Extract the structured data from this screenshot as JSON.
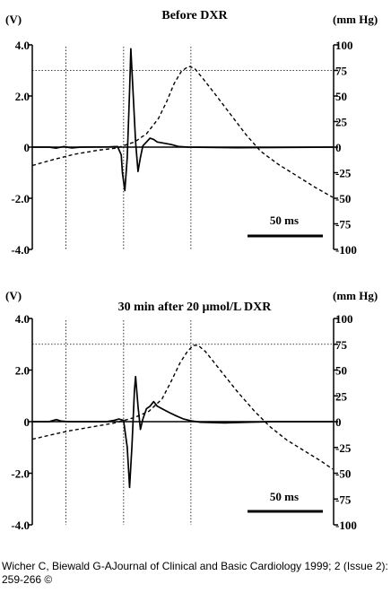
{
  "chart_data": [
    {
      "type": "line",
      "title": "Before DXR",
      "left_axis": {
        "unit": "(V)",
        "ticks": [
          "4.0",
          "2.0",
          "0",
          "-2.0",
          "-4.0"
        ],
        "range": [
          -4,
          4
        ]
      },
      "right_axis": {
        "unit": "(mm Hg)",
        "ticks": [
          "100",
          "75",
          "50",
          "25",
          "0",
          "-25",
          "-50",
          "-75",
          "-100"
        ],
        "range": [
          -100,
          100
        ]
      },
      "time_scale_label": "50 ms",
      "grid": false,
      "series": [
        {
          "style": "solid",
          "axis": "left",
          "points": [
            [
              0,
              0
            ],
            [
              14,
              0
            ],
            [
              20,
              -0.04
            ],
            [
              26,
              0.02
            ],
            [
              33,
              -0.03
            ],
            [
              40,
              0
            ],
            [
              64,
              0.01
            ],
            [
              71,
              0.02
            ],
            [
              74,
              -0.3
            ],
            [
              75,
              -1.0
            ],
            [
              77,
              -1.7
            ],
            [
              79,
              -0.4
            ],
            [
              81,
              2.2
            ],
            [
              82,
              3.85
            ],
            [
              84,
              2.0
            ],
            [
              86,
              0.2
            ],
            [
              88,
              -0.95
            ],
            [
              90,
              -0.4
            ],
            [
              92,
              0.05
            ],
            [
              95,
              0.2
            ],
            [
              98,
              0.35
            ],
            [
              101,
              0.3
            ],
            [
              104,
              0.2
            ],
            [
              110,
              0.15
            ],
            [
              116,
              0.1
            ],
            [
              122,
              0.02
            ],
            [
              130,
              0
            ],
            [
              170,
              -0.02
            ],
            [
              250,
              0
            ]
          ]
        },
        {
          "style": "dashed",
          "axis": "right",
          "points": [
            [
              0,
              -18
            ],
            [
              18,
              -12
            ],
            [
              35,
              -7
            ],
            [
              55,
              -3
            ],
            [
              70,
              -1
            ],
            [
              85,
              5
            ],
            [
              95,
              13
            ],
            [
              105,
              28
            ],
            [
              112,
              45
            ],
            [
              118,
              62
            ],
            [
              124,
              74
            ],
            [
              130,
              79
            ],
            [
              135,
              77
            ],
            [
              142,
              67
            ],
            [
              152,
              52
            ],
            [
              165,
              32
            ],
            [
              178,
              12
            ],
            [
              190,
              -4
            ],
            [
              205,
              -17
            ],
            [
              220,
              -28
            ],
            [
              235,
              -39
            ],
            [
              250,
              -49
            ]
          ]
        }
      ],
      "reference_lines": {
        "horizontal_right_axis": [
          75
        ],
        "vertical_x": [
          28,
          76,
          132
        ]
      }
    },
    {
      "type": "line",
      "title": "30 min after 20 µmol/L DXR",
      "left_axis": {
        "unit": "(V)",
        "ticks": [
          "4.0",
          "2.0",
          "0",
          "-2.0",
          "-4.0"
        ],
        "range": [
          -4,
          4
        ]
      },
      "right_axis": {
        "unit": "(mm Hg)",
        "ticks": [
          "100",
          "75",
          "50",
          "25",
          "0",
          "-25",
          "-50",
          "-75",
          "-100"
        ],
        "range": [
          -100,
          100
        ]
      },
      "time_scale_label": "50 ms",
      "grid": false,
      "series": [
        {
          "style": "solid",
          "axis": "left",
          "points": [
            [
              0,
              0
            ],
            [
              14,
              0
            ],
            [
              20,
              0.08
            ],
            [
              24,
              0.02
            ],
            [
              30,
              0
            ],
            [
              62,
              0
            ],
            [
              68,
              0.05
            ],
            [
              72,
              0.1
            ],
            [
              76,
              0.05
            ],
            [
              79,
              -1.0
            ],
            [
              81,
              -2.55
            ],
            [
              83,
              -0.9
            ],
            [
              85,
              1.2
            ],
            [
              86,
              1.75
            ],
            [
              88,
              0.6
            ],
            [
              90,
              -0.3
            ],
            [
              92,
              0.1
            ],
            [
              95,
              0.5
            ],
            [
              98,
              0.6
            ],
            [
              101,
              0.78
            ],
            [
              104,
              0.6
            ],
            [
              108,
              0.5
            ],
            [
              114,
              0.35
            ],
            [
              120,
              0.22
            ],
            [
              126,
              0.1
            ],
            [
              132,
              0.03
            ],
            [
              140,
              -0.02
            ],
            [
              160,
              -0.05
            ],
            [
              180,
              -0.02
            ],
            [
              200,
              0
            ],
            [
              250,
              0
            ]
          ]
        },
        {
          "style": "dashed",
          "axis": "right",
          "points": [
            [
              0,
              -17
            ],
            [
              15,
              -13
            ],
            [
              30,
              -9
            ],
            [
              50,
              -5
            ],
            [
              70,
              -1
            ],
            [
              85,
              4
            ],
            [
              97,
              10
            ],
            [
              108,
              22
            ],
            [
              116,
              40
            ],
            [
              123,
              57
            ],
            [
              129,
              68
            ],
            [
              134,
              74
            ],
            [
              138,
              74
            ],
            [
              144,
              68
            ],
            [
              155,
              52
            ],
            [
              170,
              30
            ],
            [
              185,
              10
            ],
            [
              198,
              -5
            ],
            [
              212,
              -18
            ],
            [
              226,
              -28
            ],
            [
              240,
              -38
            ],
            [
              250,
              -46
            ]
          ]
        }
      ],
      "reference_lines": {
        "horizontal_right_axis": [
          75
        ],
        "vertical_x": [
          28,
          76,
          132
        ]
      }
    }
  ],
  "citation": "Wicher C, Biewald G-AJournal of Clinical and Basic Cardiology 1999; 2 (Issue 2): 259-266 ©"
}
